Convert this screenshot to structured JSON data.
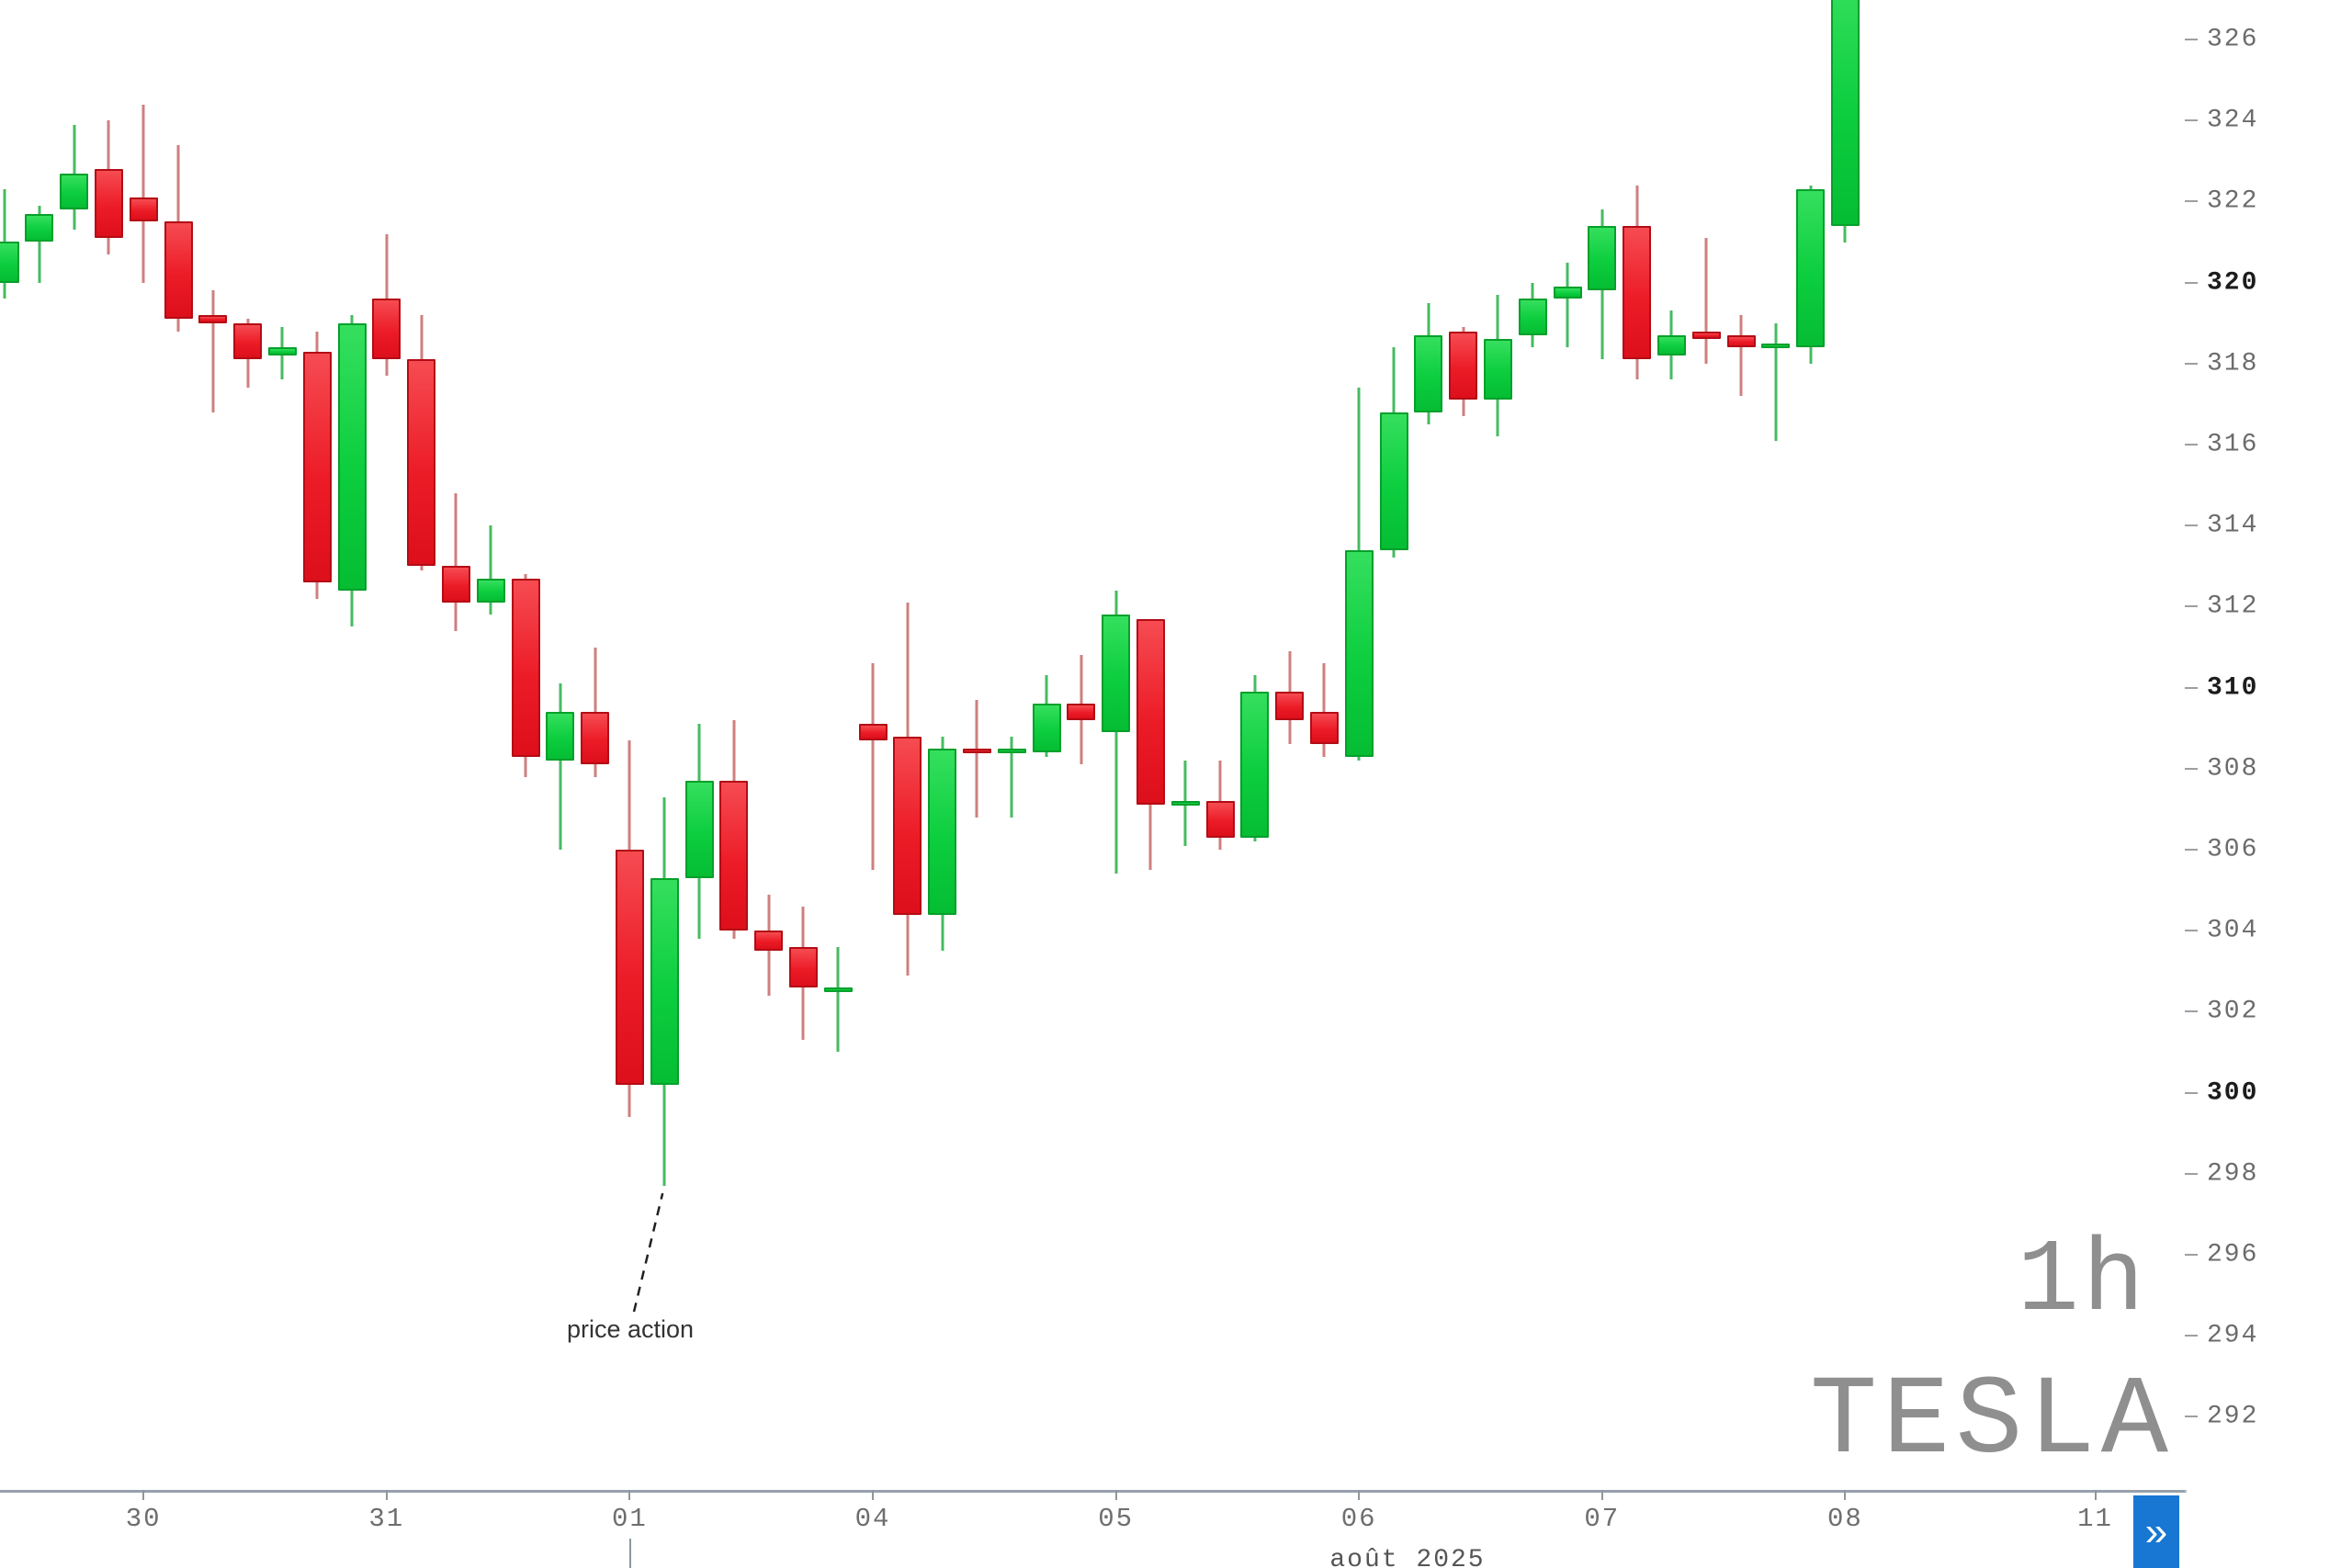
{
  "watermark": {
    "timeframe": "1h",
    "symbol": "TESLA"
  },
  "annotation": {
    "text": "price action",
    "target_candle_index": 19
  },
  "x_axis": {
    "month_label": "août 2025",
    "day_ticks": [
      {
        "label": "30",
        "candle_index": 4
      },
      {
        "label": "31",
        "candle_index": 11
      },
      {
        "label": "01",
        "candle_index": 18
      },
      {
        "label": "04",
        "candle_index": 25
      },
      {
        "label": "05",
        "candle_index": 32
      },
      {
        "label": "06",
        "candle_index": 39
      },
      {
        "label": "07",
        "candle_index": 46
      },
      {
        "label": "08",
        "candle_index": 53
      },
      {
        "label": "11",
        "candle_index": 60.2
      }
    ],
    "cursor_tick_candle_index": 18
  },
  "y_axis": {
    "labels": [
      326,
      324,
      322,
      320,
      318,
      316,
      314,
      312,
      310,
      308,
      306,
      304,
      302,
      300,
      298,
      296,
      294,
      292
    ],
    "bold_labels": [
      320,
      310,
      300
    ],
    "step": 2
  },
  "nav": {
    "scroll_to_latest_label": "»",
    "button_color": "#1877d2"
  },
  "colors": {
    "bull_body": "#0cce3e",
    "bull_border": "#05a02b",
    "bull_wick": "#46bb60",
    "bear_body": "#ec1c27",
    "bear_border": "#b30c15",
    "bear_wick": "#cf7f7f",
    "axis_line": "#97a1aa",
    "label_gray": "#6b6b6b",
    "label_bold": "#1c1c1c",
    "watermark_gray": "#8f8f8f"
  },
  "chart_data": {
    "type": "candlestick",
    "title": "",
    "symbol": "TESLA",
    "timeframe": "1h",
    "xlabel": "août 2025",
    "ylabel": "price",
    "ylim": [
      290.2,
      327.0
    ],
    "grid": false,
    "x_labels": [
      "30",
      "31",
      "01",
      "04",
      "05",
      "06",
      "07",
      "08",
      "11"
    ],
    "candles_format": [
      "open",
      "high",
      "low",
      "close"
    ],
    "candles": [
      [
        320.0,
        322.3,
        319.6,
        321.0
      ],
      [
        321.0,
        321.9,
        320.0,
        321.7
      ],
      [
        321.8,
        323.9,
        321.3,
        322.7
      ],
      [
        322.8,
        324.0,
        320.7,
        321.1
      ],
      [
        322.1,
        324.4,
        320.0,
        321.5
      ],
      [
        321.5,
        323.4,
        318.8,
        319.1
      ],
      [
        319.2,
        319.8,
        316.8,
        319.0
      ],
      [
        319.0,
        319.1,
        317.4,
        318.1
      ],
      [
        318.2,
        318.9,
        317.6,
        318.4
      ],
      [
        318.3,
        318.8,
        312.2,
        312.6
      ],
      [
        312.4,
        319.2,
        311.5,
        319.0
      ],
      [
        319.6,
        321.2,
        317.7,
        318.1
      ],
      [
        318.1,
        319.2,
        312.9,
        313.0
      ],
      [
        313.0,
        314.8,
        311.4,
        312.1
      ],
      [
        312.1,
        314.0,
        311.8,
        312.7
      ],
      [
        312.7,
        312.8,
        307.8,
        308.3
      ],
      [
        308.2,
        310.1,
        306.0,
        309.4
      ],
      [
        309.4,
        311.0,
        307.8,
        308.1
      ],
      [
        306.0,
        308.7,
        299.4,
        300.2
      ],
      [
        300.2,
        307.3,
        297.7,
        305.3
      ],
      [
        305.3,
        309.1,
        303.8,
        307.7
      ],
      [
        307.7,
        309.2,
        303.8,
        304.0
      ],
      [
        304.0,
        304.9,
        302.4,
        303.5
      ],
      [
        303.6,
        304.6,
        301.3,
        302.6
      ],
      [
        302.5,
        303.6,
        301.0,
        302.6
      ],
      [
        309.1,
        310.6,
        305.5,
        308.7
      ],
      [
        308.8,
        312.1,
        302.9,
        304.4
      ],
      [
        304.4,
        308.8,
        303.5,
        308.5
      ],
      [
        308.5,
        309.7,
        306.8,
        308.4
      ],
      [
        308.4,
        308.8,
        306.8,
        308.5
      ],
      [
        308.4,
        310.3,
        308.3,
        309.6
      ],
      [
        309.6,
        310.8,
        308.1,
        309.2
      ],
      [
        308.9,
        312.4,
        305.4,
        311.8
      ],
      [
        311.7,
        311.7,
        305.5,
        307.1
      ],
      [
        307.1,
        308.2,
        306.1,
        307.2
      ],
      [
        307.2,
        308.2,
        306.0,
        306.3
      ],
      [
        306.3,
        310.3,
        306.2,
        309.9
      ],
      [
        309.9,
        310.9,
        308.6,
        309.2
      ],
      [
        309.4,
        310.6,
        308.3,
        308.6
      ],
      [
        308.3,
        317.4,
        308.2,
        313.4
      ],
      [
        313.4,
        318.4,
        313.2,
        316.8
      ],
      [
        316.8,
        319.5,
        316.5,
        318.7
      ],
      [
        318.8,
        318.9,
        316.7,
        317.1
      ],
      [
        317.1,
        319.7,
        316.2,
        318.6
      ],
      [
        318.7,
        320.0,
        318.4,
        319.6
      ],
      [
        319.6,
        320.5,
        318.4,
        319.9
      ],
      [
        319.8,
        321.8,
        318.1,
        321.4
      ],
      [
        321.4,
        322.4,
        317.6,
        318.1
      ],
      [
        318.2,
        319.3,
        317.6,
        318.7
      ],
      [
        318.8,
        321.1,
        318.0,
        318.6
      ],
      [
        318.7,
        319.2,
        317.2,
        318.4
      ],
      [
        318.4,
        319.0,
        316.1,
        318.5
      ],
      [
        318.4,
        322.4,
        318.0,
        322.3
      ],
      [
        321.4,
        327.8,
        321.0,
        327.6
      ]
    ]
  }
}
